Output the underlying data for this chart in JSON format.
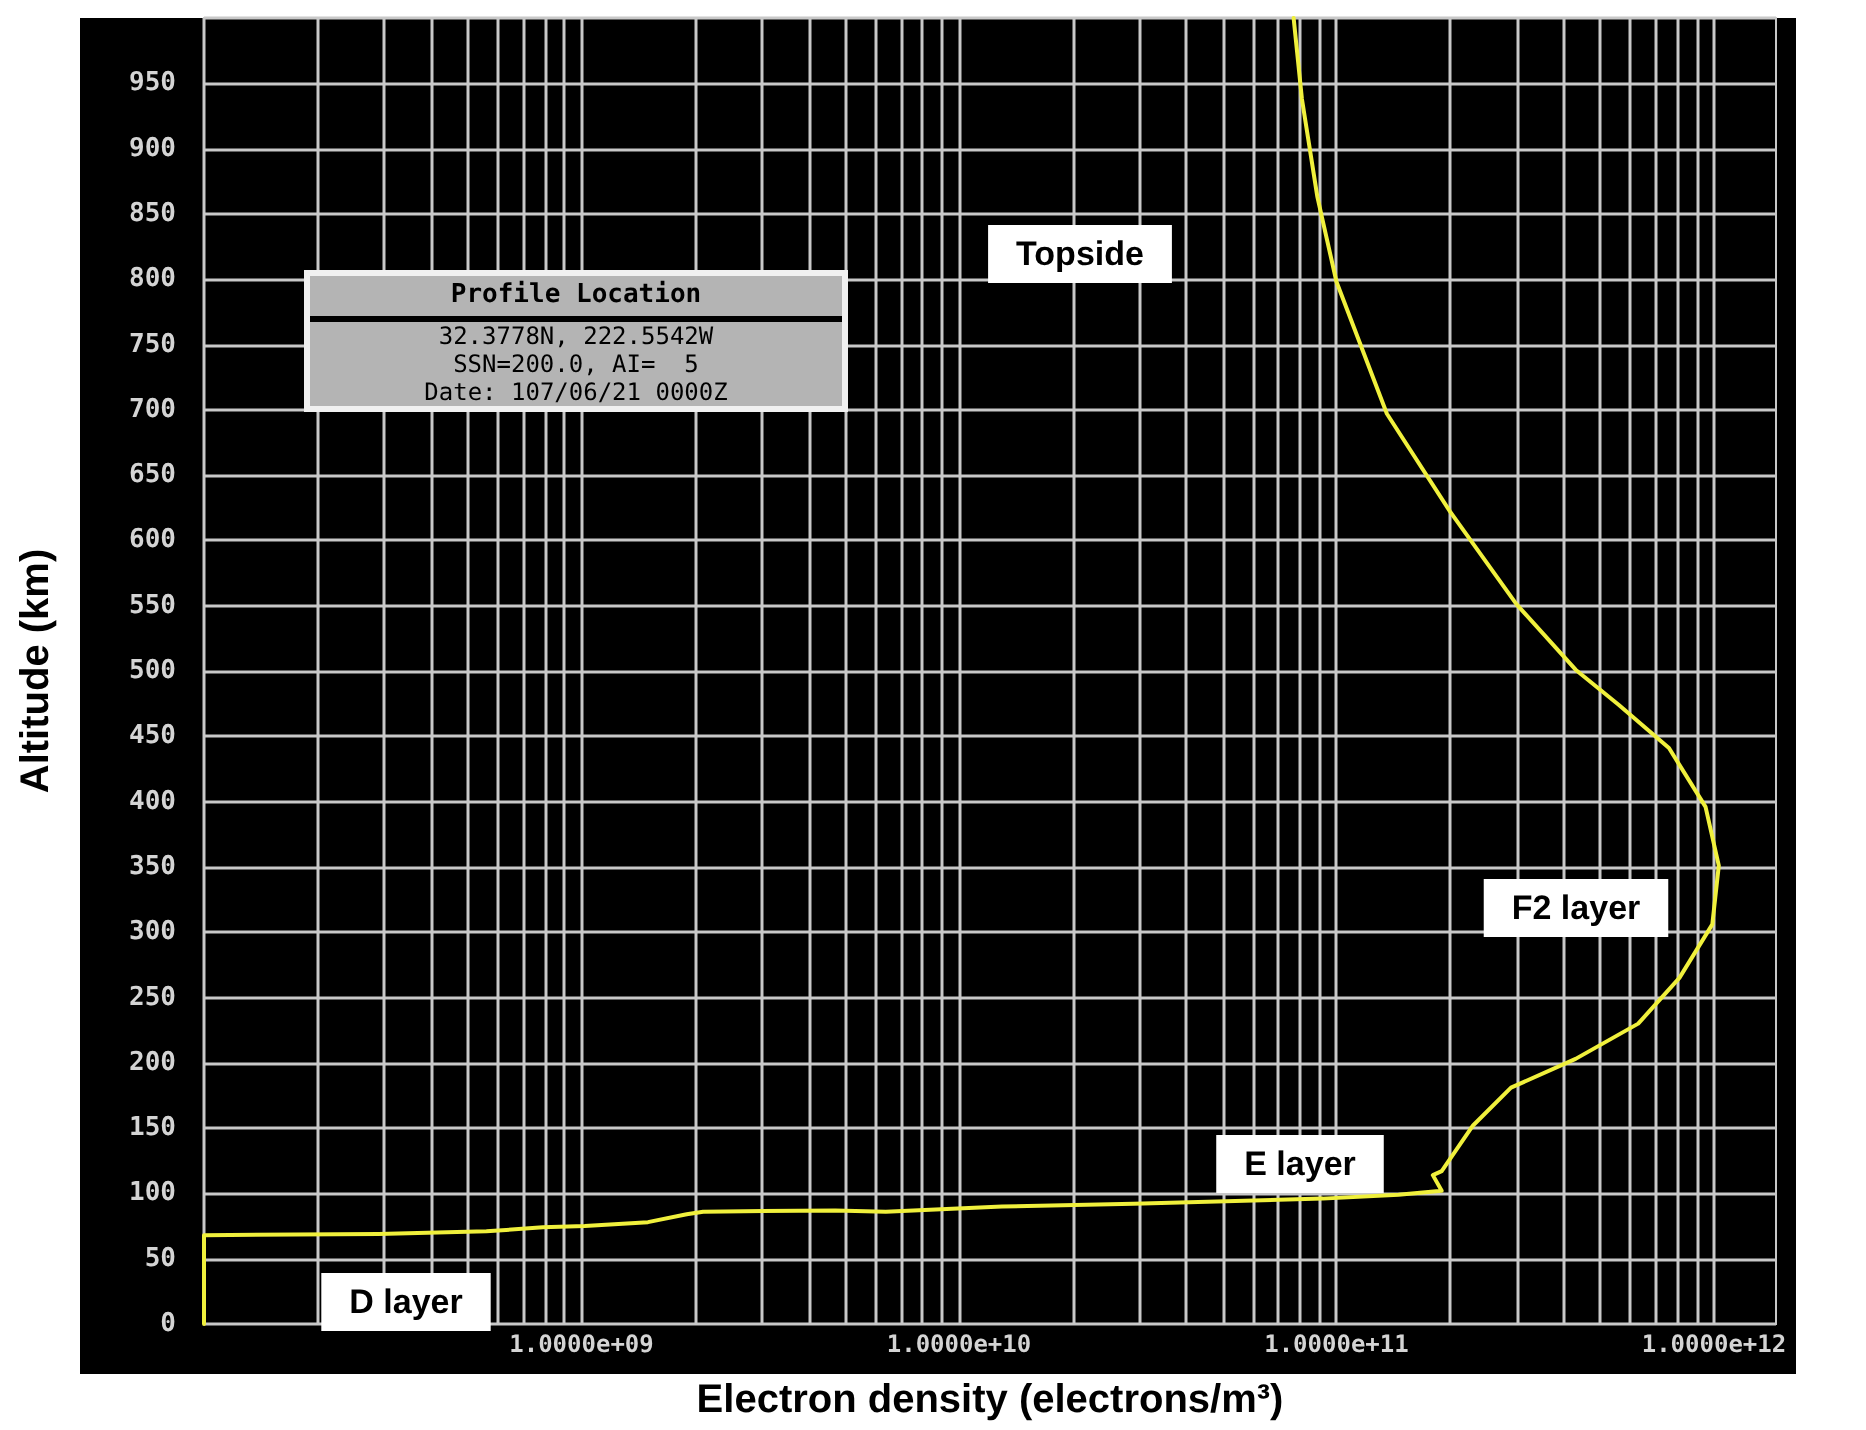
{
  "chart_data": {
    "type": "line",
    "xlabel": "Electron density (electrons/m³)",
    "ylabel": "Altitude (km)",
    "log": "x",
    "grid": true,
    "marker": "none",
    "line_style": "solid",
    "xlim": [
      100000000.0,
      1460000000000.0
    ],
    "ylim": [
      0,
      1000
    ],
    "xticks": [
      {
        "value": 100000000.0,
        "label": null
      },
      {
        "value": 200000000.0,
        "label": null
      },
      {
        "value": 300000000.0,
        "label": null
      },
      {
        "value": 400000000.0,
        "label": null
      },
      {
        "value": 500000000.0,
        "label": null
      },
      {
        "value": 600000000.0,
        "label": null
      },
      {
        "value": 700000000.0,
        "label": null
      },
      {
        "value": 800000000.0,
        "label": null
      },
      {
        "value": 900000000.0,
        "label": null
      },
      {
        "value": 1000000000.0,
        "label": "1.0000e+09"
      },
      {
        "value": 2000000000.0,
        "label": null
      },
      {
        "value": 3000000000.0,
        "label": null
      },
      {
        "value": 4000000000.0,
        "label": null
      },
      {
        "value": 5000000000.0,
        "label": null
      },
      {
        "value": 6000000000.0,
        "label": null
      },
      {
        "value": 7000000000.0,
        "label": null
      },
      {
        "value": 8000000000.0,
        "label": null
      },
      {
        "value": 9000000000.0,
        "label": null
      },
      {
        "value": 10000000000.0,
        "label": "1.0000e+10"
      },
      {
        "value": 20000000000.0,
        "label": null
      },
      {
        "value": 30000000000.0,
        "label": null
      },
      {
        "value": 40000000000.0,
        "label": null
      },
      {
        "value": 50000000000.0,
        "label": null
      },
      {
        "value": 60000000000.0,
        "label": null
      },
      {
        "value": 70000000000.0,
        "label": null
      },
      {
        "value": 80000000000.0,
        "label": null
      },
      {
        "value": 90000000000.0,
        "label": null
      },
      {
        "value": 100000000000.0,
        "label": "1.0000e+11"
      },
      {
        "value": 200000000000.0,
        "label": null
      },
      {
        "value": 300000000000.0,
        "label": null
      },
      {
        "value": 400000000000.0,
        "label": null
      },
      {
        "value": 500000000000.0,
        "label": null
      },
      {
        "value": 600000000000.0,
        "label": null
      },
      {
        "value": 700000000000.0,
        "label": null
      },
      {
        "value": 800000000000.0,
        "label": null
      },
      {
        "value": 900000000000.0,
        "label": null
      },
      {
        "value": 1000000000000.0,
        "label": "1.0000e+12"
      }
    ],
    "yticks": [
      0,
      50,
      100,
      150,
      200,
      250,
      300,
      350,
      400,
      450,
      500,
      550,
      600,
      650,
      700,
      750,
      800,
      850,
      900,
      950,
      {
        "value": 1000,
        "label": null
      }
    ],
    "series": [
      {
        "color": "#f0f03c",
        "x": [
          100000000.0,
          100000000.0,
          290000000.0,
          560000000.0,
          790000000.0,
          1020000000.0,
          1500000000.0,
          1900000000.0,
          2100000000.0,
          4700000000.0,
          6400000000.0,
          13000000000.0,
          29000000000.0,
          92000000000.0,
          146000000000.0,
          190000000000.0,
          180000000000.0,
          190000000000.0,
          230000000000.0,
          290000000000.0,
          430000000000.0,
          630000000000.0,
          810000000000.0,
          990000000000.0,
          1030000000000.0,
          950000000000.0,
          760000000000.0,
          560000000000.0,
          430000000000.0,
          300000000000.0,
          200000000000.0,
          136000000000.0,
          100000000000.0,
          89000000000.0,
          81000000000.0,
          77000000000.0
        ],
        "values": [
          0,
          68,
          69,
          71,
          74,
          75,
          78,
          84,
          86,
          87,
          86,
          90,
          92,
          96,
          99,
          102,
          114,
          117,
          152,
          181,
          203,
          230,
          265,
          306,
          351,
          396,
          441,
          474,
          501,
          551,
          622,
          697,
          798,
          863,
          938,
          1000
        ]
      }
    ],
    "annotations": [
      "Topside",
      "F2 layer",
      "E layer",
      "D layer",
      "Profile Location",
      "32.3778N, 222.5542W",
      "SSN=200.0, AI=  5",
      "Date: 107/06/21 0000Z"
    ]
  }
}
